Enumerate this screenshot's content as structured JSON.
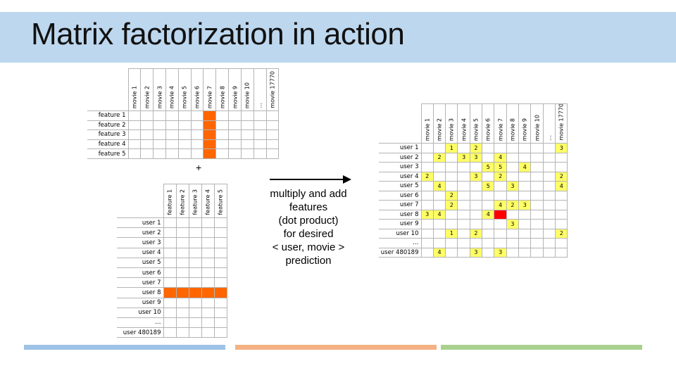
{
  "title": "Matrix factorization in action",
  "plus_sign": "+",
  "annotation": [
    "multiply and add",
    "features",
    "(dot product)",
    "for desired",
    "< user, movie >",
    "prediction"
  ],
  "movies": [
    "movie 1",
    "movie 2",
    "movie 3",
    "movie 4",
    "movie 5",
    "movie 6",
    "movie 7",
    "movie 8",
    "movie 9",
    "movie 10",
    "…",
    "movie 17770"
  ],
  "features": [
    "feature 1",
    "feature 2",
    "feature 3",
    "feature 4",
    "feature 5"
  ],
  "users": [
    "user 1",
    "user 2",
    "user 3",
    "user 4",
    "user 5",
    "user 6",
    "user 7",
    "user 8",
    "user 9",
    "user 10",
    "…",
    "user 480189"
  ],
  "highlight": {
    "movie": "movie 7",
    "user": "user 8",
    "color": "#ff6600",
    "prediction_color": "#ff0000"
  },
  "ratings": [
    [
      "",
      "",
      "1",
      "",
      "2",
      "",
      "",
      "",
      "",
      "",
      "",
      "3"
    ],
    [
      "",
      "2",
      "",
      "3",
      "3",
      "",
      "4",
      "",
      "",
      "",
      "",
      ""
    ],
    [
      "",
      "",
      "",
      "",
      "",
      "5",
      "5",
      "",
      "4",
      "",
      "",
      ""
    ],
    [
      "2",
      "",
      "",
      "",
      "3",
      "",
      "2",
      "",
      "",
      "",
      "",
      "2"
    ],
    [
      "",
      "4",
      "",
      "",
      "",
      "5",
      "",
      "3",
      "",
      "",
      "",
      "4"
    ],
    [
      "",
      "",
      "2",
      "",
      "",
      "",
      "",
      "",
      "",
      "",
      "",
      ""
    ],
    [
      "",
      "",
      "2",
      "",
      "",
      "",
      "4",
      "2",
      "3",
      "",
      "",
      ""
    ],
    [
      "3",
      "4",
      "",
      "",
      "",
      "4",
      "?",
      "",
      "",
      "",
      "",
      ""
    ],
    [
      "",
      "",
      "",
      "",
      "",
      "",
      "",
      "3",
      "",
      "",
      "",
      ""
    ],
    [
      "",
      "",
      "1",
      "",
      "2",
      "",
      "",
      "",
      "",
      "",
      "",
      "2"
    ],
    [
      "",
      "",
      "",
      "",
      "",
      "",
      "",
      "",
      "",
      "",
      "",
      ""
    ],
    [
      "",
      "4",
      "",
      "",
      "3",
      "",
      "3",
      "",
      "",
      "",
      "",
      ""
    ]
  ],
  "colors": {
    "title_band": "#bdd7ee",
    "rating_fill": "#ffff66",
    "footer_blue": "#9dc3e6",
    "footer_orange": "#f4b183",
    "footer_green": "#a9d18e"
  }
}
